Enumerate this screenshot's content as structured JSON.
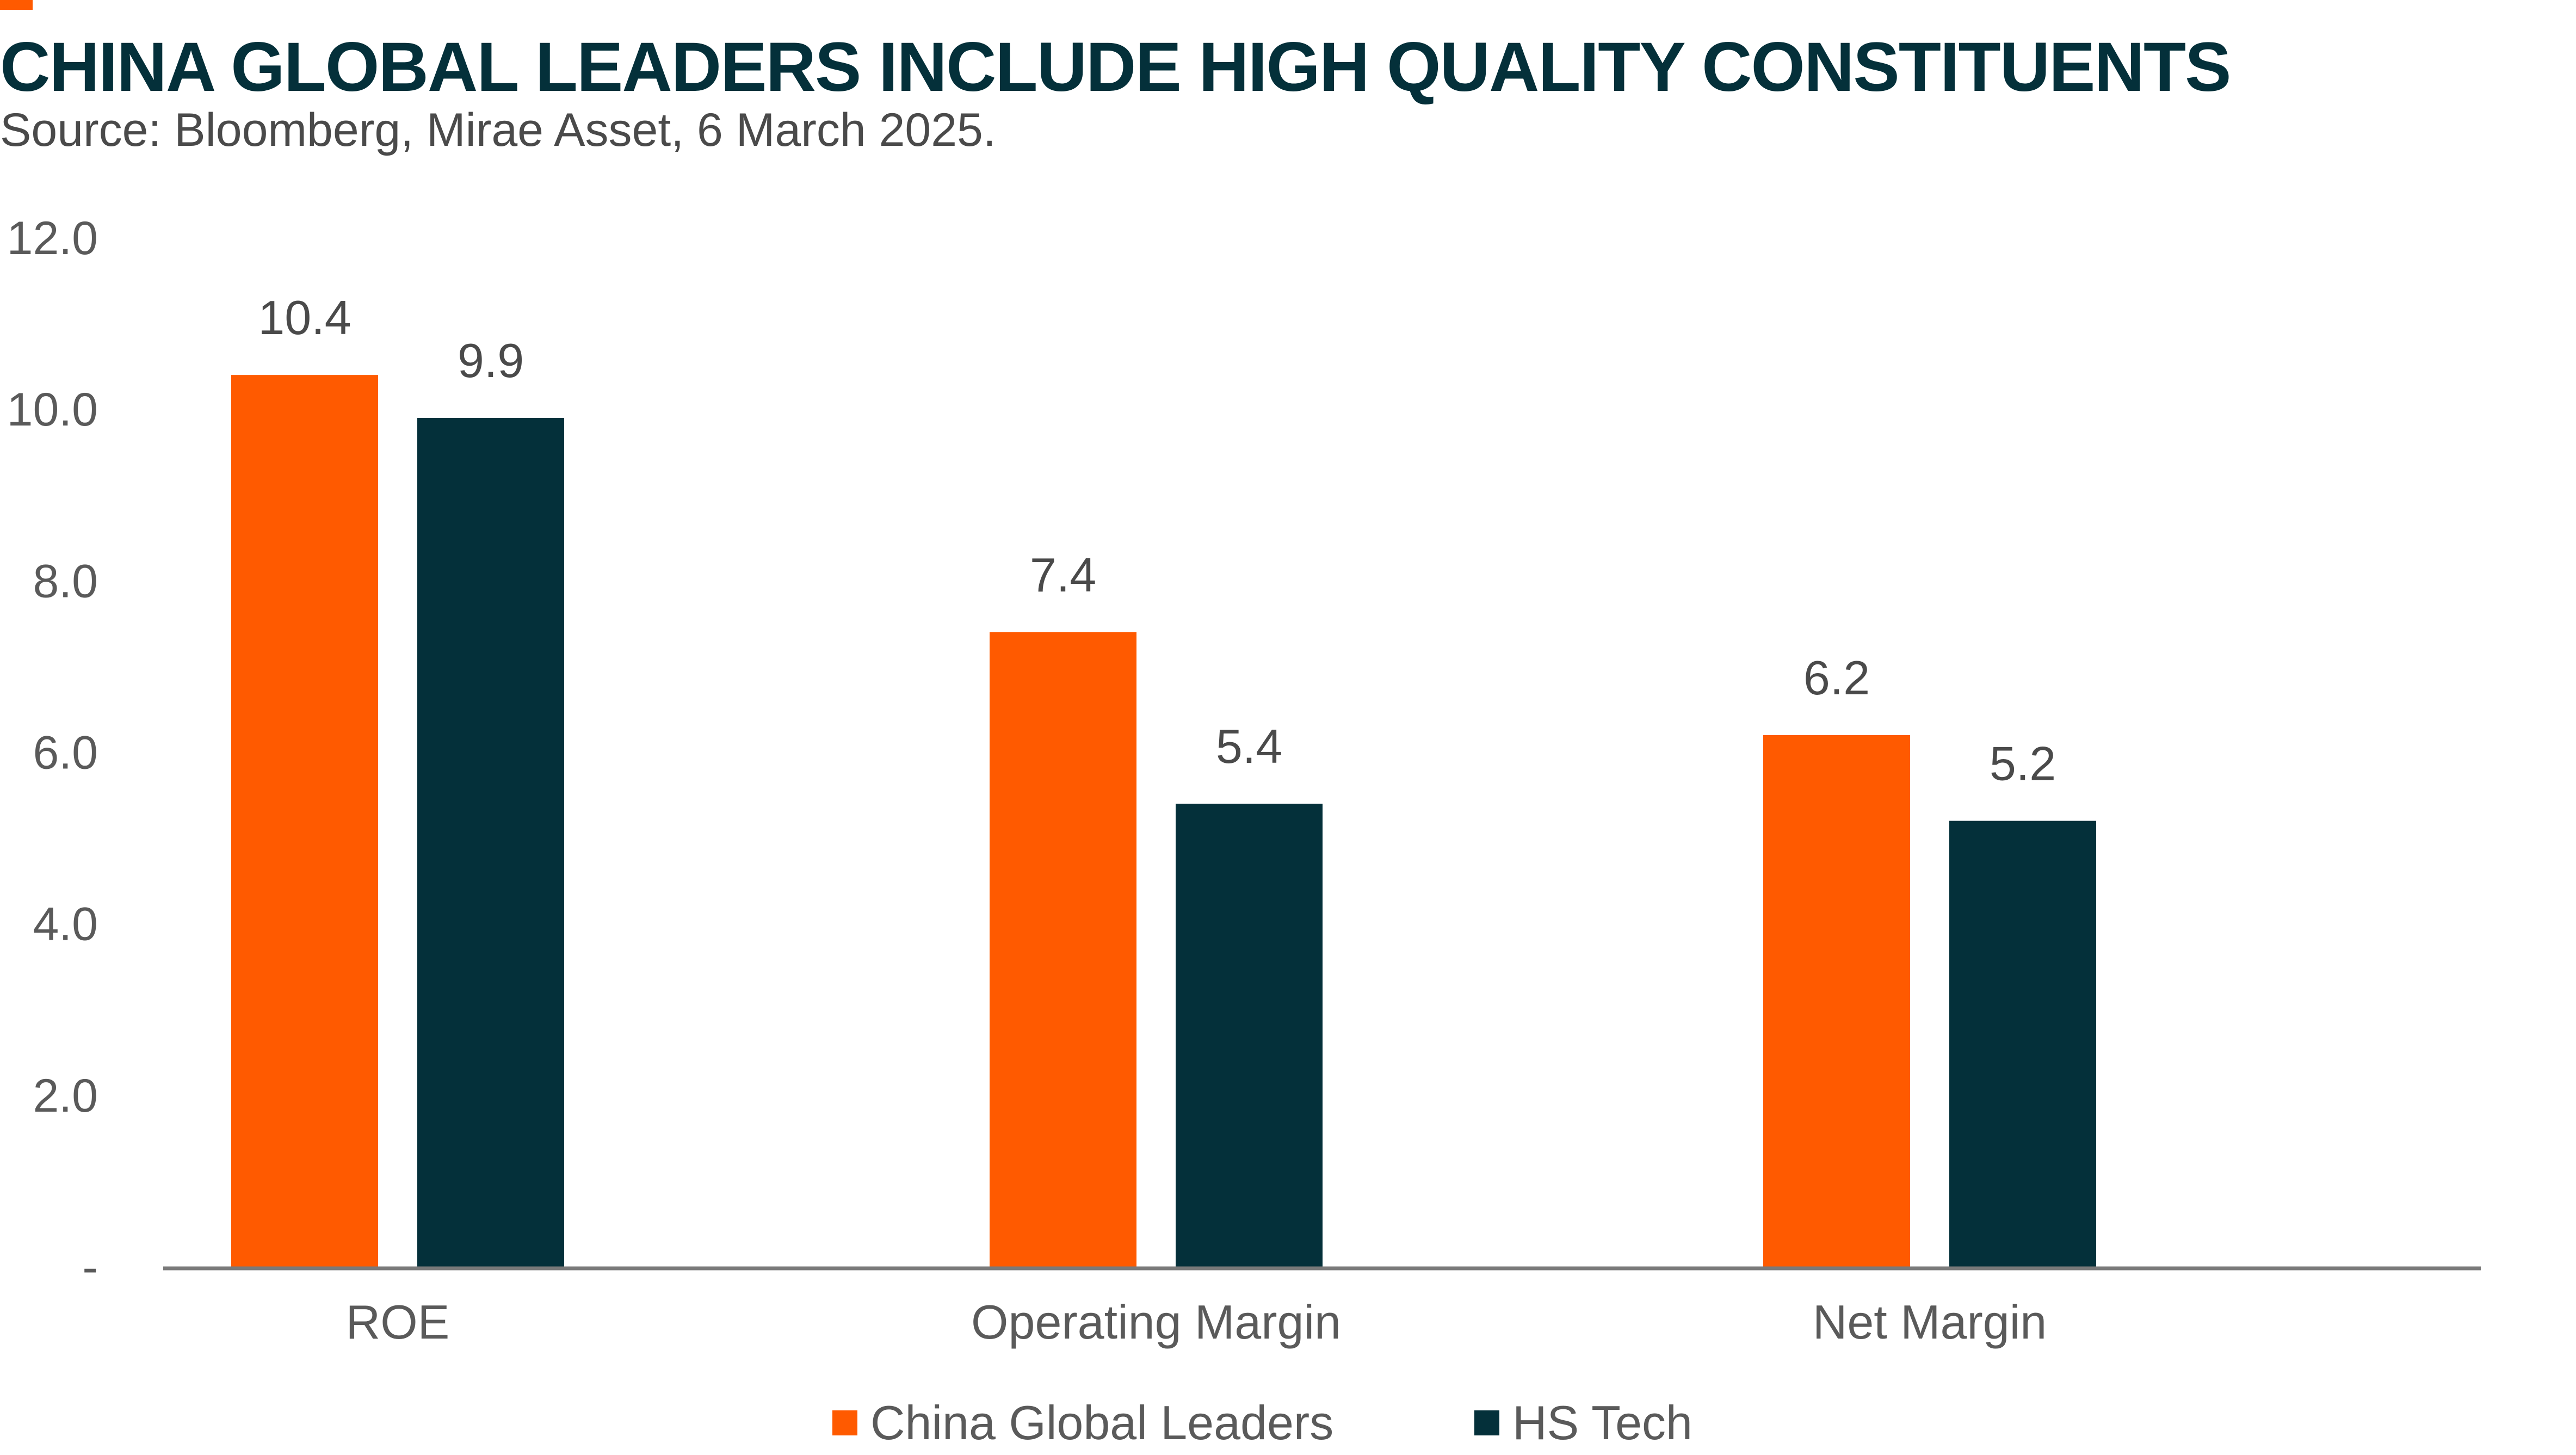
{
  "header": {
    "title": "CHINA GLOBAL LEADERS INCLUDE HIGH QUALITY CONSTITUENTS",
    "source": "Source: Bloomberg, Mirae Asset, 6 March 2025.",
    "accent_color": "#FF5A00"
  },
  "chart_data": {
    "type": "bar",
    "title": "CHINA GLOBAL LEADERS INCLUDE HIGH QUALITY CONSTITUENTS",
    "xlabel": "",
    "ylabel": "",
    "categories": [
      "ROE",
      "Operating Margin",
      "Net Margin"
    ],
    "series": [
      {
        "name": "China Global Leaders",
        "color": "#FF5A00",
        "values": [
          10.4,
          7.4,
          6.2
        ]
      },
      {
        "name": "HS Tech",
        "color": "#04303A",
        "values": [
          9.9,
          5.4,
          5.2
        ]
      }
    ],
    "ylim": [
      0,
      12
    ],
    "yticks": [
      0,
      2,
      4,
      6,
      8,
      10,
      12
    ],
    "ytick_labels": [
      "-",
      "2.0",
      "4.0",
      "6.0",
      "8.0",
      "10.0",
      "12.0"
    ],
    "data_labels": [
      [
        "10.4",
        "7.4",
        "6.2"
      ],
      [
        "9.9",
        "5.4",
        "5.2"
      ]
    ],
    "grid": false,
    "legend_position": "bottom"
  }
}
